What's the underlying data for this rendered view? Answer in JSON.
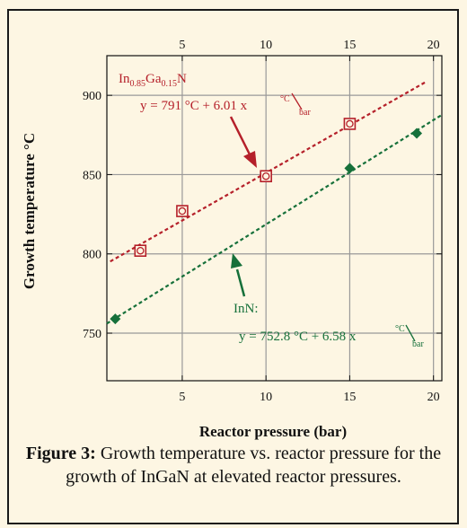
{
  "chart_data": {
    "type": "scatter",
    "xlabel": "Reactor pressure (bar)",
    "ylabel": "Growth temperature °C",
    "xlim": [
      0.5,
      20.5
    ],
    "ylim": [
      720,
      925
    ],
    "xticks": [
      5,
      10,
      15,
      20
    ],
    "yticks": [
      750,
      800,
      850,
      900
    ],
    "grid": true,
    "series": [
      {
        "name": "In0.85Ga0.15N",
        "color": "#b5202a",
        "marker": "open-square",
        "x": [
          2.5,
          5,
          10,
          15
        ],
        "y": [
          802,
          827,
          849,
          882
        ],
        "fit": {
          "intercept": 791,
          "slope": 6.01,
          "x_range": [
            0.7,
            19.5
          ]
        }
      },
      {
        "name": "InN",
        "color": "#16703a",
        "marker": "filled-diamond",
        "x": [
          1,
          15,
          19
        ],
        "y": [
          759,
          854,
          876
        ],
        "fit": {
          "intercept": 752.8,
          "slope": 6.58,
          "x_range": [
            0.5,
            20.5
          ]
        }
      }
    ],
    "annotations": {
      "ingan_label_main": "In",
      "ingan_sub1": "0.85",
      "ingan_mid": "Ga",
      "ingan_sub2": "0.15",
      "ingan_end": "N",
      "ingan_eq": "y = 791 °C + 6.01   x",
      "ingan_unit_num": "°C",
      "ingan_unit_den": "bar",
      "inn_label": "InN:",
      "inn_eq": "y = 752.8 °C + 6.58   x",
      "inn_unit_num": "°C",
      "inn_unit_den": "bar"
    }
  },
  "caption": {
    "bold": "Figure 3:",
    "text": " Growth temperature vs. reactor pressure for the growth of InGaN at elevated reactor pressures."
  }
}
